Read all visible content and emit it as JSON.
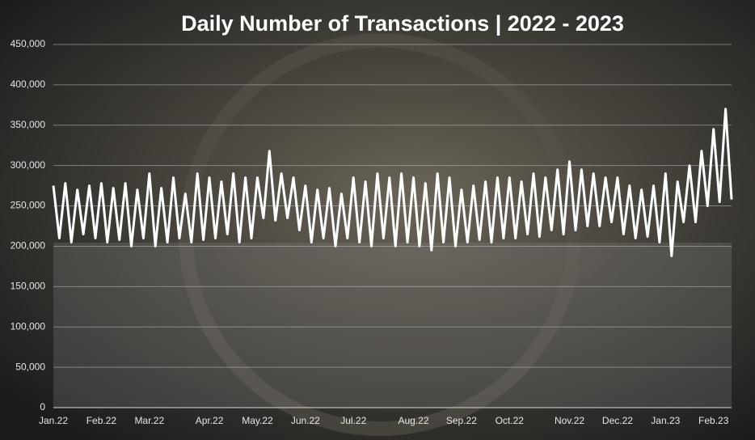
{
  "chart_data": {
    "type": "line",
    "title": "Daily Number of Transactions | 2022 - 2023",
    "categories": [
      "Jan.22",
      null,
      null,
      null,
      null,
      null,
      null,
      null,
      "Feb.22",
      null,
      null,
      null,
      null,
      null,
      null,
      null,
      "Mar.22",
      null,
      null,
      null,
      null,
      null,
      null,
      null,
      null,
      null,
      "Apr.22",
      null,
      null,
      null,
      null,
      null,
      null,
      null,
      "May.22",
      null,
      null,
      null,
      null,
      null,
      null,
      null,
      "Jun.22",
      null,
      null,
      null,
      null,
      null,
      null,
      null,
      "Jul.22",
      null,
      null,
      null,
      null,
      null,
      null,
      null,
      null,
      null,
      "Aug.22",
      null,
      null,
      null,
      null,
      null,
      null,
      null,
      "Sep.22",
      null,
      null,
      null,
      null,
      null,
      null,
      null,
      "Oct.22",
      null,
      null,
      null,
      null,
      null,
      null,
      null,
      null,
      null,
      "Nov.22",
      null,
      null,
      null,
      null,
      null,
      null,
      null,
      "Dec.22",
      null,
      null,
      null,
      null,
      null,
      null,
      null,
      "Jan.23",
      null,
      null,
      null,
      null,
      null,
      null,
      null,
      "Feb.23",
      null,
      null,
      null
    ],
    "values": [
      275000,
      210000,
      278000,
      205000,
      270000,
      215000,
      275000,
      210000,
      278000,
      205000,
      272000,
      208000,
      278000,
      200000,
      270000,
      210000,
      290000,
      200000,
      272000,
      205000,
      285000,
      210000,
      265000,
      205000,
      290000,
      208000,
      285000,
      210000,
      280000,
      215000,
      290000,
      205000,
      285000,
      210000,
      285000,
      235000,
      318000,
      232000,
      290000,
      235000,
      285000,
      220000,
      275000,
      205000,
      270000,
      210000,
      272000,
      200000,
      265000,
      210000,
      285000,
      205000,
      280000,
      200000,
      290000,
      210000,
      285000,
      200000,
      290000,
      205000,
      285000,
      200000,
      278000,
      195000,
      290000,
      205000,
      285000,
      200000,
      270000,
      205000,
      275000,
      208000,
      280000,
      205000,
      285000,
      210000,
      285000,
      210000,
      280000,
      215000,
      290000,
      212000,
      285000,
      220000,
      295000,
      215000,
      305000,
      220000,
      295000,
      225000,
      290000,
      225000,
      285000,
      230000,
      285000,
      215000,
      275000,
      210000,
      270000,
      212000,
      275000,
      205000,
      290000,
      188000,
      280000,
      230000,
      300000,
      230000,
      318000,
      250000,
      345000,
      255000,
      370000,
      258000
    ],
    "color": "#ffffff",
    "ylim": [
      0,
      450000
    ],
    "yticks": [
      0,
      {
        "value": 50000,
        "label": "50,000"
      },
      {
        "value": 100000,
        "label": "100,000"
      },
      {
        "value": 150000,
        "label": "150,000"
      },
      {
        "value": 200000,
        "label": "200,000"
      },
      {
        "value": 250000,
        "label": "250,000"
      },
      {
        "value": 300000,
        "label": "300,000"
      },
      {
        "value": 350000,
        "label": "350,000"
      },
      {
        "value": 400000,
        "label": "400,000"
      },
      {
        "value": 450000,
        "label": "450,000"
      }
    ],
    "grid": true
  }
}
